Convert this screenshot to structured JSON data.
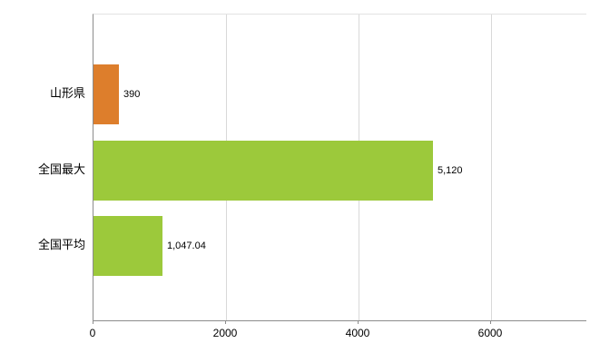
{
  "chart_data": {
    "type": "bar",
    "orientation": "horizontal",
    "title": "",
    "categories": [
      "山形県",
      "全国最大",
      "全国平均"
    ],
    "values": [
      390,
      5120,
      1047.04
    ],
    "value_labels": [
      "390",
      "5,120",
      "1,047.04"
    ],
    "bar_colors": [
      "#dd7e2c",
      "#9cc93b",
      "#9cc93b"
    ],
    "xlim": [
      0,
      6000
    ],
    "x_ticks": [
      0,
      2000,
      4000,
      6000
    ],
    "x_tick_labels": [
      "0",
      "2000",
      "4000",
      "6000"
    ],
    "xlabel": "",
    "ylabel": "",
    "grid": "vertical",
    "legend": "none",
    "axis_color": "#8c8c8c",
    "grid_color": "#d9d9d9",
    "background_color": "#ffffff"
  }
}
